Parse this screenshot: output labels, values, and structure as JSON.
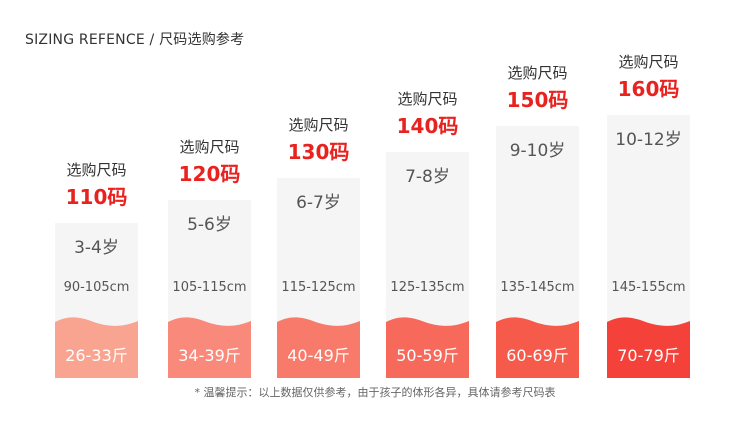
{
  "heading": "SIZING REFENCE / 尺码选购参考",
  "footnote": "* 温馨提示：以上数据仅供参考，由于孩子的体形各异，具体请参考尺码表",
  "colors": {
    "accent": "#e8221f"
  },
  "sizes": [
    {
      "label": "选购尺码",
      "size": "110码",
      "age": "3-4岁",
      "height": "90-105cm",
      "weight": "26-33斤",
      "fill_color": "#f9a491"
    },
    {
      "label": "选购尺码",
      "size": "120码",
      "age": "5-6岁",
      "height": "105-115cm",
      "weight": "34-39斤",
      "fill_color": "#f9897a"
    },
    {
      "label": "选购尺码",
      "size": "130码",
      "age": "6-7岁",
      "height": "115-125cm",
      "weight": "40-49斤",
      "fill_color": "#f87a6b"
    },
    {
      "label": "选购尺码",
      "size": "140码",
      "age": "7-8岁",
      "height": "125-135cm",
      "weight": "50-59斤",
      "fill_color": "#f76a5b"
    },
    {
      "label": "选购尺码",
      "size": "150码",
      "age": "9-10岁",
      "height": "135-145cm",
      "weight": "60-69斤",
      "fill_color": "#f55a4b"
    },
    {
      "label": "选购尺码",
      "size": "160码",
      "age": "10-12岁",
      "height": "145-155cm",
      "weight": "70-79斤",
      "fill_color": "#f4423a"
    }
  ]
}
